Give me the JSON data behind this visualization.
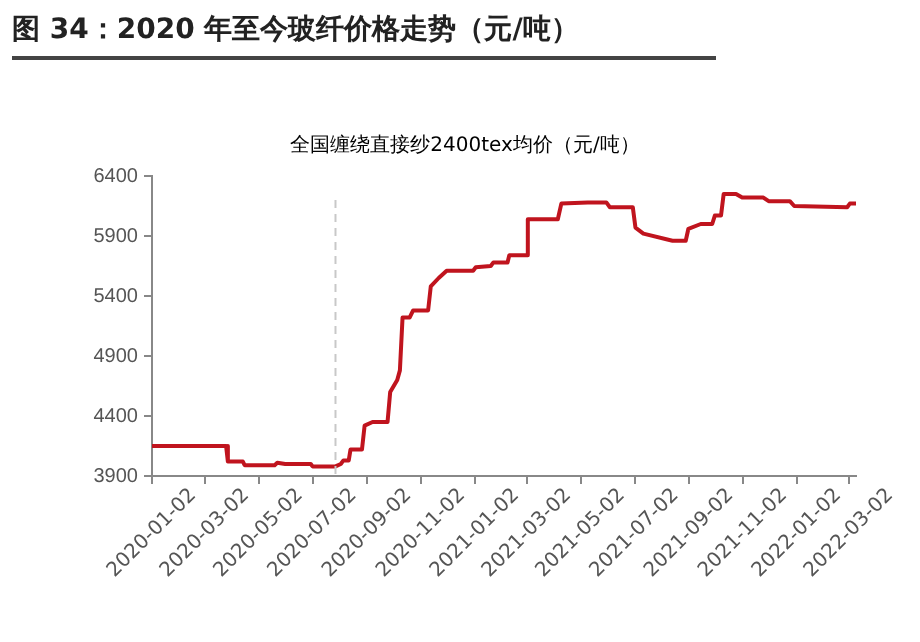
{
  "chart_data": {
    "type": "line",
    "title": "图 34：2020 年至今玻纤价格走势（元/吨）",
    "x": [
      "2020-01-02",
      "2020-03-26",
      "2020-03-28",
      "2020-04-14",
      "2020-04-16",
      "2020-05-20",
      "2020-05-23",
      "2020-06-01",
      "2020-06-30",
      "2020-07-02",
      "2020-07-28",
      "2020-08-03",
      "2020-08-06",
      "2020-08-12",
      "2020-08-14",
      "2020-08-27",
      "2020-08-30",
      "2020-09-08",
      "2020-09-25",
      "2020-09-28",
      "2020-10-06",
      "2020-10-09",
      "2020-10-12",
      "2020-10-20",
      "2020-10-24",
      "2020-11-10",
      "2020-11-13",
      "2020-11-22",
      "2020-12-01",
      "2020-12-31",
      "2021-01-03",
      "2021-01-20",
      "2021-01-23",
      "2021-02-08",
      "2021-02-10",
      "2021-03-01",
      "2021-03-03",
      "2021-04-06",
      "2021-04-10",
      "2021-05-10",
      "2021-05-31",
      "2021-06-04",
      "2021-06-30",
      "2021-07-03",
      "2021-07-12",
      "2021-08-14",
      "2021-08-29",
      "2021-09-01",
      "2021-09-15",
      "2021-09-28",
      "2021-10-01",
      "2021-10-08",
      "2021-10-11",
      "2021-10-25",
      "2021-11-01",
      "2021-11-25",
      "2021-12-01",
      "2021-12-25",
      "2021-12-30",
      "2022-02-28",
      "2022-03-03",
      "2022-03-10"
    ],
    "series": [
      {
        "name": "全国缠绕直接纱2400tex均价（元/吨）",
        "color": "#c0141e",
        "values": [
          4150,
          4150,
          4020,
          4020,
          3990,
          3990,
          4010,
          4000,
          4000,
          3980,
          3980,
          4000,
          4030,
          4030,
          4120,
          4120,
          4320,
          4350,
          4350,
          4600,
          4700,
          4780,
          5220,
          5220,
          5280,
          5280,
          5480,
          5550,
          5610,
          5610,
          5640,
          5650,
          5680,
          5680,
          5740,
          5740,
          6040,
          6040,
          6170,
          6180,
          6180,
          6140,
          6140,
          5970,
          5920,
          5860,
          5860,
          5960,
          6000,
          6000,
          6070,
          6070,
          6250,
          6250,
          6220,
          6220,
          6190,
          6190,
          6150,
          6140,
          6170,
          6170
        ]
      }
    ],
    "xlim": [
      "2020-01-02",
      "2022-03-10"
    ],
    "xticks": [
      "2020-01-02",
      "2020-03-02",
      "2020-05-02",
      "2020-07-02",
      "2020-09-02",
      "2020-11-02",
      "2021-01-02",
      "2021-03-02",
      "2021-05-02",
      "2021-07-02",
      "2021-09-02",
      "2021-11-02",
      "2022-01-02",
      "2022-03-02"
    ],
    "ylim": [
      3900,
      6400
    ],
    "yticks": [
      3900,
      4400,
      4900,
      5400,
      5900,
      6400
    ],
    "ref_lines": [
      {
        "axis": "x",
        "value": "2020-07-28",
        "color": "#c8c8c8",
        "line_style": "dashed"
      }
    ],
    "grid": false,
    "legend": "top",
    "marker": "none",
    "line_style": "solid"
  }
}
